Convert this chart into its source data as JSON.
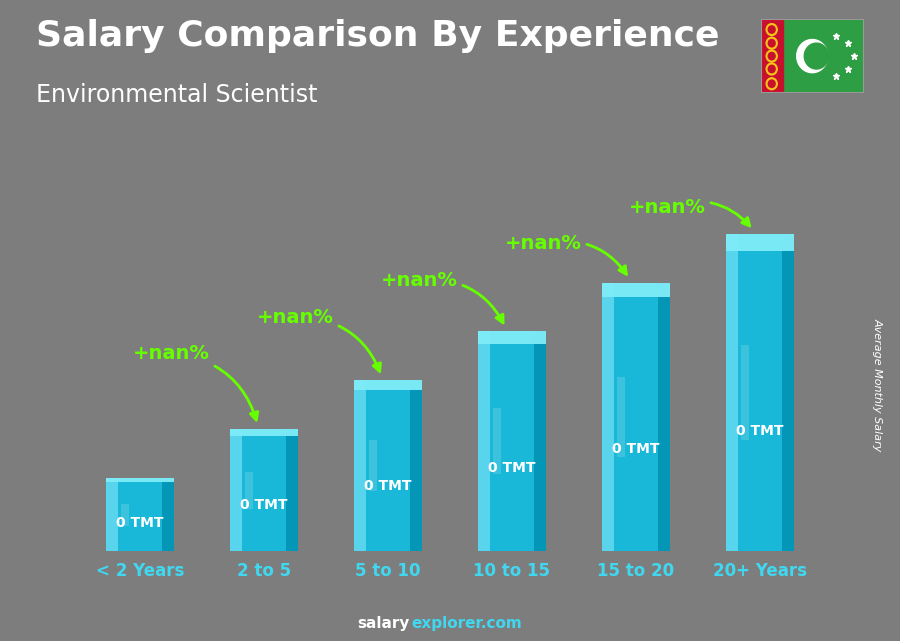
{
  "title": "Salary Comparison By Experience",
  "subtitle": "Environmental Scientist",
  "ylabel": "Average Monthly Salary",
  "watermark_salary": "salary",
  "watermark_explorer": "explorer.com",
  "categories": [
    "< 2 Years",
    "2 to 5",
    "5 to 10",
    "10 to 15",
    "15 to 20",
    "20+ Years"
  ],
  "bar_heights": [
    1.5,
    2.5,
    3.5,
    4.5,
    5.5,
    6.5
  ],
  "salary_labels": [
    "0 TMT",
    "0 TMT",
    "0 TMT",
    "0 TMT",
    "0 TMT",
    "0 TMT"
  ],
  "pct_labels": [
    "+nan%",
    "+nan%",
    "+nan%",
    "+nan%",
    "+nan%"
  ],
  "bg_color": "#7d7d7d",
  "bar_main": "#1ab8d8",
  "bar_light": "#60d8f0",
  "bar_dark": "#0090b0",
  "bar_top": "#80ecf8",
  "title_color": "#ffffff",
  "subtitle_color": "#ffffff",
  "salary_label_color": "#ffffff",
  "pct_color": "#66ff00",
  "xlabel_color": "#40d8f0",
  "watermark_color1": "#ffffff",
  "watermark_color2": "#40d8f0",
  "ylabel_color": "#ffffff",
  "title_fontsize": 26,
  "subtitle_fontsize": 17,
  "label_fontsize": 10,
  "pct_fontsize": 14,
  "xlabel_fontsize": 12,
  "watermark_fontsize": 11
}
